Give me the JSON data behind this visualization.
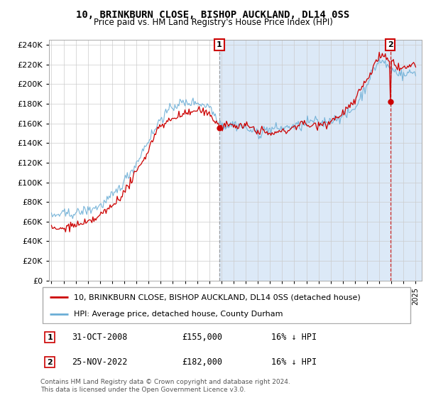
{
  "title": "10, BRINKBURN CLOSE, BISHOP AUCKLAND, DL14 0SS",
  "subtitle": "Price paid vs. HM Land Registry's House Price Index (HPI)",
  "legend_line1": "10, BRINKBURN CLOSE, BISHOP AUCKLAND, DL14 0SS (detached house)",
  "legend_line2": "HPI: Average price, detached house, County Durham",
  "footnote": "Contains HM Land Registry data © Crown copyright and database right 2024.\nThis data is licensed under the Open Government Licence v3.0.",
  "sale1_date": "31-OCT-2008",
  "sale1_price": 155000,
  "sale1_label": "16% ↓ HPI",
  "sale2_date": "25-NOV-2022",
  "sale2_price": 182000,
  "sale2_label": "16% ↓ HPI",
  "hpi_color": "#6baed6",
  "price_color": "#cc0000",
  "sale1_line_color": "#888888",
  "sale2_line_color": "#cc0000",
  "background_fill": "#dce9f7",
  "ylim": [
    0,
    245000
  ],
  "yticks": [
    0,
    20000,
    40000,
    60000,
    80000,
    100000,
    120000,
    140000,
    160000,
    180000,
    200000,
    220000,
    240000
  ],
  "sale1_x": 2008.833,
  "sale2_x": 2022.9
}
